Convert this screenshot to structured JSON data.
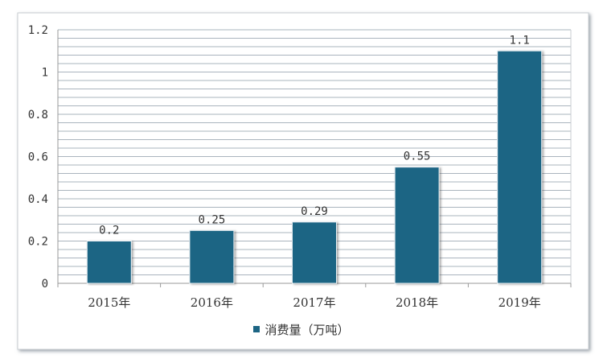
{
  "chart_data": {
    "type": "bar",
    "categories": [
      "2015年",
      "2016年",
      "2017年",
      "2018年",
      "2019年"
    ],
    "series": [
      {
        "name": "消费量（万吨）",
        "values": [
          0.2,
          0.25,
          0.29,
          0.55,
          1.1
        ]
      }
    ],
    "data_labels": [
      "0.2",
      "0.25",
      "0.29",
      "0.55",
      "1.1"
    ],
    "yticks": [
      "0",
      "0.2",
      "0.4",
      "0.6",
      "0.8",
      "1",
      "1.2"
    ],
    "ylim": [
      0,
      1.2
    ],
    "minor_grid_step": 0.04,
    "grid": true,
    "legend_position": "bottom",
    "colors": {
      "bar": "#1d6584",
      "grid": "#aab4be",
      "axis": "#9a9a9a",
      "frame_shadow": "#7d8a96"
    }
  }
}
